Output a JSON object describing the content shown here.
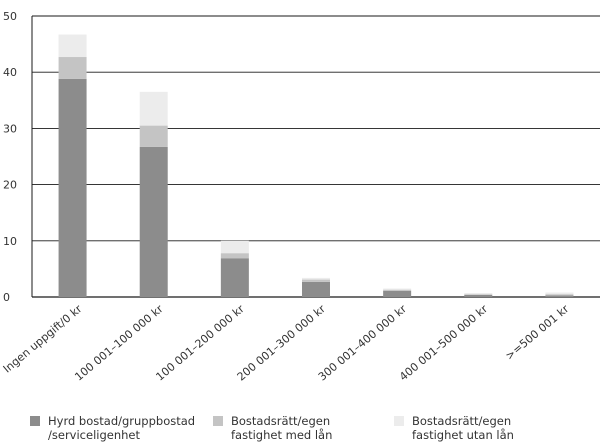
{
  "chart_data": {
    "type": "bar",
    "stacked": true,
    "categories": [
      "Ingen uppgift/0 kr",
      "100 001–100 000 kr",
      "100 001–200 000 kr",
      "200 001–300 000 kr",
      "300 001–400 000 kr",
      "400 001–500 000 kr",
      ">=500 001 kr"
    ],
    "series": [
      {
        "name": "Hyrd bostad/gruppbostad /serviceligenhet",
        "name_lines": [
          "Hyrd bostad/gruppbostad",
          "/serviceligenhet"
        ],
        "color": "#8c8c8c",
        "values": [
          38.8,
          26.7,
          6.9,
          2.7,
          1.1,
          0.4,
          0.3
        ]
      },
      {
        "name": "Bostadsrätt/egen fastighet med lån",
        "name_lines": [
          "Bostadsrätt/egen",
          "fastighet med lån"
        ],
        "color": "#c4c4c4",
        "values": [
          3.9,
          3.8,
          0.9,
          0.4,
          0.2,
          0.1,
          0.2
        ]
      },
      {
        "name": "Bostadsrätt/egen fastighet utan lån",
        "name_lines": [
          "Bostadsrätt/egen",
          "fastighet utan lån"
        ],
        "color": "#ececec",
        "values": [
          4.0,
          6.0,
          2.2,
          0.3,
          0.2,
          0.2,
          0.3
        ]
      }
    ],
    "yticks": [
      0,
      10,
      20,
      30,
      40,
      50
    ],
    "ylim": [
      0,
      50
    ],
    "title": "",
    "xlabel": "",
    "ylabel": "",
    "grid": true,
    "legend_position": "bottom"
  }
}
